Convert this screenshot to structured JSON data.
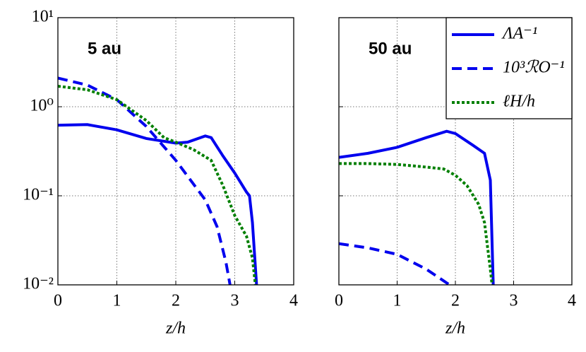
{
  "chart_data": [
    {
      "type": "line",
      "annotation": "5 au",
      "xlabel": "z/h",
      "log_y": true,
      "grid": true,
      "ytick_labels": true,
      "xlim": [
        0,
        4
      ],
      "xticks": [
        0,
        1,
        2,
        3,
        4
      ],
      "ylim": [
        0.01,
        10
      ],
      "yticks": [
        {
          "value": 0.01,
          "label": "10⁻²"
        },
        {
          "value": 0.1,
          "label": "10⁻¹"
        },
        {
          "value": 1,
          "label": "10⁰"
        },
        {
          "value": 10,
          "label": "10¹"
        }
      ],
      "series": [
        {
          "name": "ΛA⁻¹",
          "color": "#0000ee",
          "style": "solid",
          "x": [
            0,
            0.5,
            1,
            1.5,
            2,
            2.2,
            2.5,
            2.6,
            2.8,
            3.0,
            3.2,
            3.25,
            3.3,
            3.37
          ],
          "values": [
            0.62,
            0.63,
            0.55,
            0.44,
            0.39,
            0.4,
            0.47,
            0.45,
            0.28,
            0.18,
            0.11,
            0.1,
            0.05,
            0.01
          ]
        },
        {
          "name": "10³ℛO⁻¹",
          "color": "#0000ee",
          "style": "dashed",
          "x": [
            0,
            0.5,
            1,
            1.5,
            2,
            2.5,
            2.7,
            2.85,
            2.92
          ],
          "values": [
            2.1,
            1.75,
            1.2,
            0.6,
            0.25,
            0.09,
            0.045,
            0.018,
            0.01
          ]
        },
        {
          "name": "ℓH/h",
          "color": "#007f00",
          "style": "dotted",
          "x": [
            0,
            0.5,
            1,
            1.5,
            1.8,
            2,
            2.3,
            2.6,
            2.8,
            3.0,
            3.2,
            3.3,
            3.35
          ],
          "values": [
            1.7,
            1.55,
            1.2,
            0.7,
            0.45,
            0.4,
            0.33,
            0.25,
            0.13,
            0.06,
            0.035,
            0.02,
            0.01
          ]
        }
      ]
    },
    {
      "type": "line",
      "annotation": "50 au",
      "xlabel": "z/h",
      "log_y": true,
      "grid": true,
      "ytick_labels": false,
      "legend": "upper right",
      "xlim": [
        0,
        4
      ],
      "xticks": [
        0,
        1,
        2,
        3,
        4
      ],
      "ylim": [
        0.01,
        10
      ],
      "yticks": [
        0.01,
        0.1,
        1,
        10
      ],
      "series": [
        {
          "name": "ΛA⁻¹",
          "color": "#0000ee",
          "style": "solid",
          "x": [
            0,
            0.5,
            1,
            1.5,
            1.85,
            2,
            2.3,
            2.5,
            2.6,
            2.65
          ],
          "values": [
            0.27,
            0.3,
            0.35,
            0.45,
            0.53,
            0.5,
            0.37,
            0.3,
            0.15,
            0.01
          ]
        },
        {
          "name": "10³ℛO⁻¹",
          "color": "#0000ee",
          "style": "dashed",
          "x": [
            0,
            0.5,
            1,
            1.5,
            1.9
          ],
          "values": [
            0.029,
            0.026,
            0.022,
            0.015,
            0.01
          ]
        },
        {
          "name": "ℓH/h",
          "color": "#007f00",
          "style": "dotted",
          "x": [
            0,
            0.5,
            1,
            1.5,
            1.8,
            2.0,
            2.2,
            2.4,
            2.5,
            2.6,
            2.63
          ],
          "values": [
            0.23,
            0.23,
            0.225,
            0.21,
            0.2,
            0.17,
            0.13,
            0.08,
            0.05,
            0.015,
            0.01
          ]
        }
      ]
    }
  ]
}
